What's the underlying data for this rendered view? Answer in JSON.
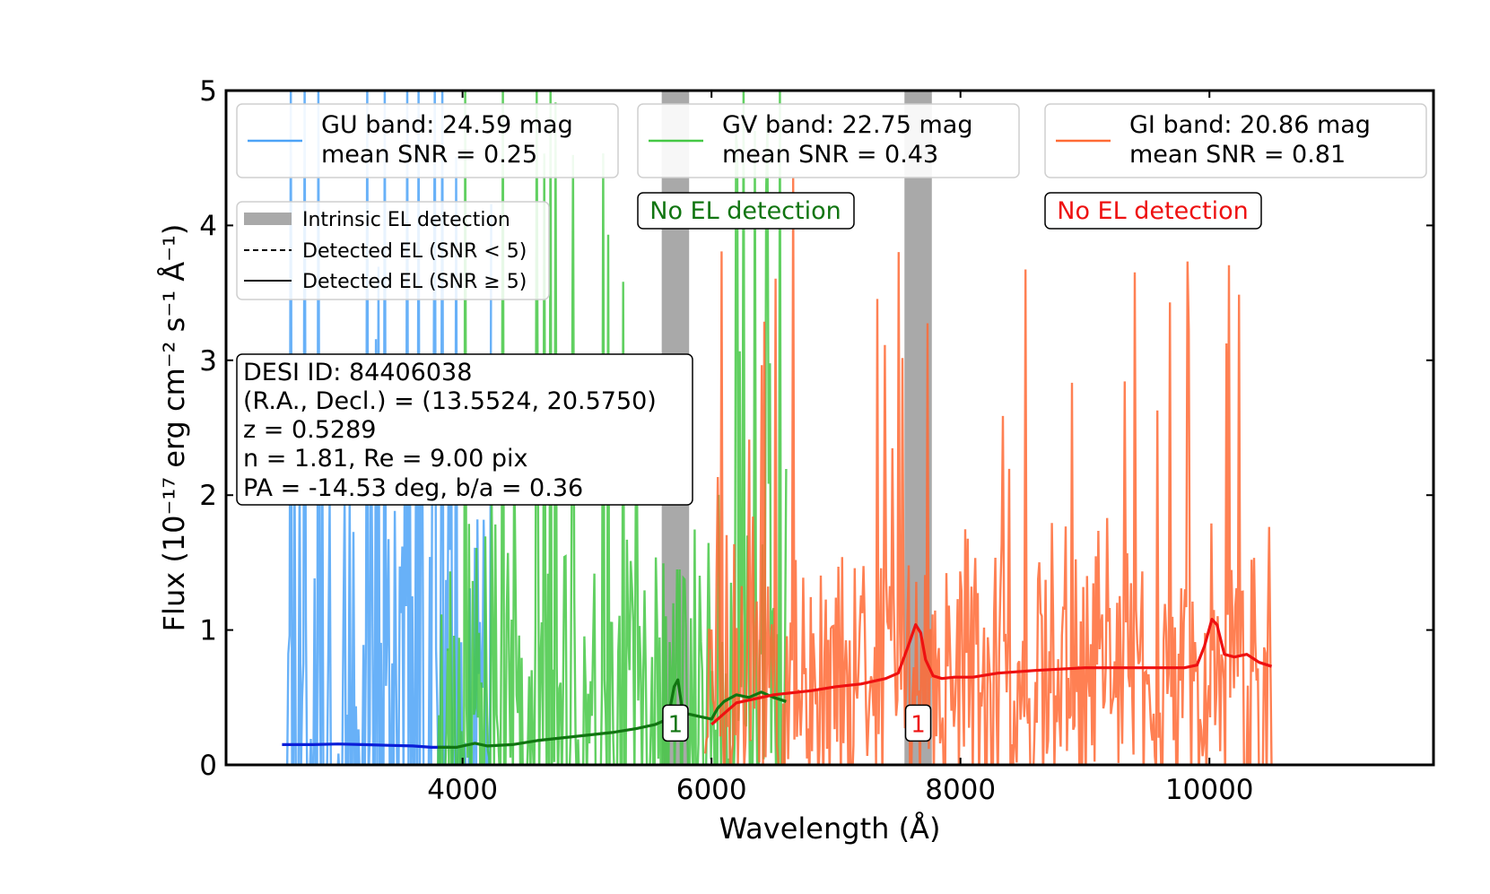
{
  "chart_data": {
    "type": "line",
    "xlabel": "Wavelength (Å)",
    "ylabel_main": "Flux ",
    "ylabel_unit": "(10⁻¹⁷ erg cm⁻² s⁻¹ Å⁻¹)",
    "xlim": [
      2100,
      11800
    ],
    "ylim": [
      0,
      5
    ],
    "xticks": [
      4000,
      6000,
      8000,
      10000
    ],
    "xtick_labels": [
      "4000",
      "6000",
      "8000",
      "10000"
    ],
    "yticks": [
      0,
      1,
      2,
      3,
      4,
      5
    ],
    "ytick_labels": [
      "0",
      "1",
      "2",
      "3",
      "4",
      "5"
    ],
    "colors": {
      "gu": "#4da3f7",
      "gv": "#45c845",
      "gi": "#ff6a35",
      "gu_model": "#0a1ed8",
      "gv_model": "#117511",
      "gi_model": "#ee1111",
      "intrinsic": "#a9a9a9"
    },
    "intrinsic_el_bands": [
      {
        "x0": 5600,
        "x1": 5820
      },
      {
        "x0": 7550,
        "x1": 7770
      }
    ],
    "band_legends": [
      {
        "band_line": "GU band: 24.59 mag",
        "snr_line": "mean SNR = 0.25",
        "color": "#4da3f7"
      },
      {
        "band_line": "GV band: 22.75 mag",
        "snr_line": "mean SNR = 0.43",
        "color": "#45c845"
      },
      {
        "band_line": "GI band: 20.86 mag",
        "snr_line": "mean SNR = 0.81",
        "color": "#ff6a35"
      }
    ],
    "el_legend": [
      {
        "label": "Intrinsic EL detection",
        "style": "thick"
      },
      {
        "label": "Detected EL (SNR < 5)",
        "style": "dashed"
      },
      {
        "label": "Detected EL (SNR ≥ 5)",
        "style": "solid"
      }
    ],
    "detection_labels": [
      {
        "text": "No EL detection",
        "color": "#117511"
      },
      {
        "text": "No EL detection",
        "color": "#ee1111"
      }
    ],
    "line_markers": [
      {
        "text": "1",
        "x": 5710,
        "y": 0.31,
        "color": "#117511"
      },
      {
        "text": "1",
        "x": 7660,
        "y": 0.31,
        "color": "#ee1111"
      }
    ],
    "info_box": [
      "DESI ID: 84406038",
      "(R.A., Decl.) = (13.5524, 20.5750)",
      "z = 0.5289",
      "n = 1.81, Re = 9.00 pix",
      "PA = -14.53 deg, b/a = 0.36"
    ],
    "series": [
      {
        "name": "GU band",
        "x_range": [
          2550,
          4230
        ],
        "baseline": 0.15,
        "noise_sigma": 3.0,
        "seed": 11
      },
      {
        "name": "GV band",
        "x_range": [
          3800,
          6600
        ],
        "baseline": 0.3,
        "noise_sigma": 1.6,
        "seed": 23
      },
      {
        "name": "GI band",
        "x_range": [
          5950,
          10500
        ],
        "baseline": 0.6,
        "noise_sigma": 1.0,
        "seed": 37
      },
      {
        "name": "GU model",
        "x": [
          2550,
          2800,
          3000,
          3200,
          3400,
          3600,
          3750,
          3850,
          3900
        ],
        "y": [
          0.15,
          0.15,
          0.155,
          0.15,
          0.145,
          0.14,
          0.13,
          0.13,
          0.13
        ]
      },
      {
        "name": "GV model",
        "x": [
          3800,
          3950,
          4100,
          4200,
          4400,
          4600,
          4800,
          5000,
          5200,
          5400,
          5550,
          5650,
          5700,
          5730,
          5760,
          5800,
          5900,
          6000,
          6050,
          6100,
          6200,
          6300,
          6400,
          6500,
          6600
        ],
        "y": [
          0.13,
          0.13,
          0.16,
          0.14,
          0.15,
          0.18,
          0.2,
          0.22,
          0.24,
          0.27,
          0.3,
          0.34,
          0.58,
          0.63,
          0.44,
          0.38,
          0.36,
          0.34,
          0.42,
          0.47,
          0.52,
          0.5,
          0.54,
          0.5,
          0.47
        ]
      },
      {
        "name": "GI model",
        "x": [
          6000,
          6100,
          6200,
          6300,
          6400,
          6500,
          6600,
          6800,
          7000,
          7200,
          7400,
          7500,
          7580,
          7640,
          7680,
          7720,
          7780,
          7850,
          7950,
          8100,
          8300,
          8600,
          9000,
          9400,
          9800,
          9900,
          9960,
          10020,
          10060,
          10120,
          10200,
          10300,
          10400,
          10500
        ],
        "y": [
          0.3,
          0.38,
          0.46,
          0.48,
          0.5,
          0.52,
          0.53,
          0.55,
          0.58,
          0.6,
          0.64,
          0.68,
          0.88,
          1.04,
          0.98,
          0.78,
          0.66,
          0.64,
          0.65,
          0.65,
          0.68,
          0.7,
          0.72,
          0.72,
          0.72,
          0.74,
          0.88,
          1.08,
          1.04,
          0.82,
          0.8,
          0.82,
          0.76,
          0.73
        ]
      }
    ]
  }
}
